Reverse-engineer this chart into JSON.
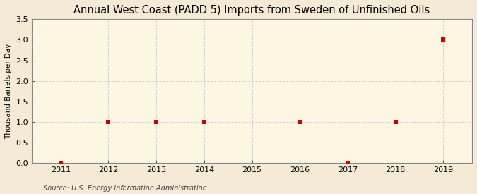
{
  "title": "Annual West Coast (PADD 5) Imports from Sweden of Unfinished Oils",
  "ylabel": "Thousand Barrels per Day",
  "source": "Source: U.S. Energy Information Administration",
  "years": [
    2011,
    2012,
    2013,
    2014,
    2015,
    2016,
    2017,
    2018,
    2019
  ],
  "values": [
    0.0,
    1.0,
    1.0,
    1.0,
    null,
    1.0,
    0.0,
    1.0,
    3.0
  ],
  "xlim": [
    2010.4,
    2019.6
  ],
  "ylim": [
    0.0,
    3.5
  ],
  "yticks": [
    0.0,
    0.5,
    1.0,
    1.5,
    2.0,
    2.5,
    3.0,
    3.5
  ],
  "xticks": [
    2011,
    2012,
    2013,
    2014,
    2015,
    2016,
    2017,
    2018,
    2019
  ],
  "background_color": "#f5ead5",
  "plot_bg_color": "#fdf6e3",
  "marker_color": "#cc0000",
  "marker_size": 4,
  "grid_color": "#bbbbbb",
  "title_fontsize": 10.5,
  "label_fontsize": 7.5,
  "tick_fontsize": 8,
  "source_fontsize": 7
}
